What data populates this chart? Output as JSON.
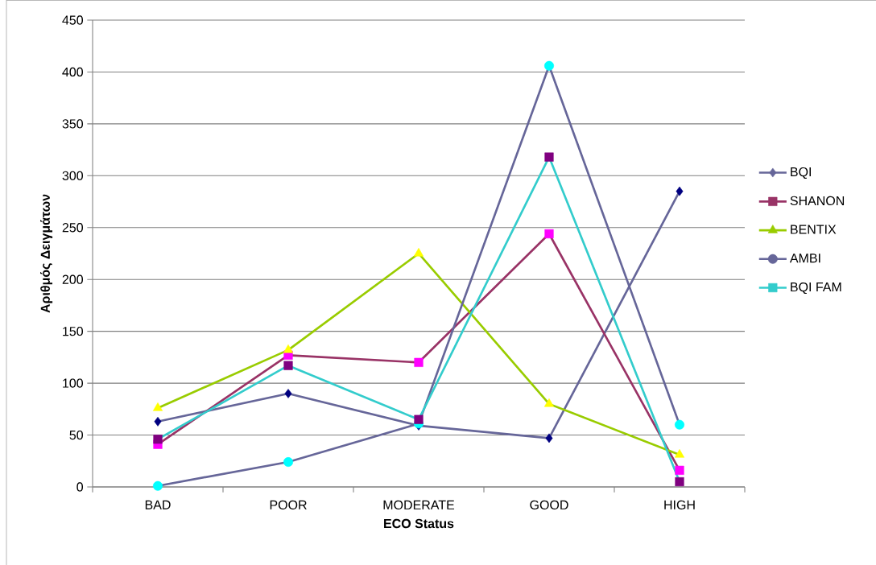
{
  "chart_data": {
    "type": "line",
    "xlabel": "ECO Status",
    "ylabel": "Αριθμός Δειγμάτων",
    "categories": [
      "BAD",
      "POOR",
      "MODERATE",
      "GOOD",
      "HIGH"
    ],
    "series": [
      {
        "name": "BQI",
        "color": "#666699",
        "colors": [
          "#000080",
          "#000080",
          "#000080",
          "#000080",
          "#000080"
        ],
        "marker": "diamond",
        "values": [
          63,
          90,
          59,
          47,
          285
        ]
      },
      {
        "name": "SHANON",
        "color": "#993366",
        "colors": [
          "#ff00ff",
          "#ff00ff",
          "#ff00ff",
          "#ff00ff",
          "#ff00ff"
        ],
        "marker": "square",
        "values": [
          41,
          127,
          120,
          244,
          16
        ]
      },
      {
        "name": "BENTIX",
        "color": "#99cc00",
        "colors": [
          "#ffff00",
          "#ffff00",
          "#ffff00",
          "#ffff00",
          "#ffff00"
        ],
        "marker": "triangle",
        "values": [
          76,
          132,
          225,
          80,
          31
        ]
      },
      {
        "name": "AMBI",
        "color": "#666699",
        "colors": [
          "#00ffff",
          "#00ffff",
          "#00ffff",
          "#00ffff",
          "#00ffff"
        ],
        "marker": "circle",
        "values": [
          1,
          24,
          61,
          406,
          60
        ]
      },
      {
        "name": "BQI FAM",
        "color": "#33cccc",
        "colors": [
          "#800080",
          "#800080",
          "#800080",
          "#800080",
          "#800080"
        ],
        "marker": "square",
        "values": [
          46,
          117,
          65,
          318,
          5
        ]
      }
    ],
    "ylim": [
      0,
      450
    ],
    "yticks": [
      0,
      50,
      100,
      150,
      200,
      250,
      300,
      350,
      400,
      450
    ],
    "grid": "y",
    "legend": "right",
    "line_style": "solid"
  }
}
